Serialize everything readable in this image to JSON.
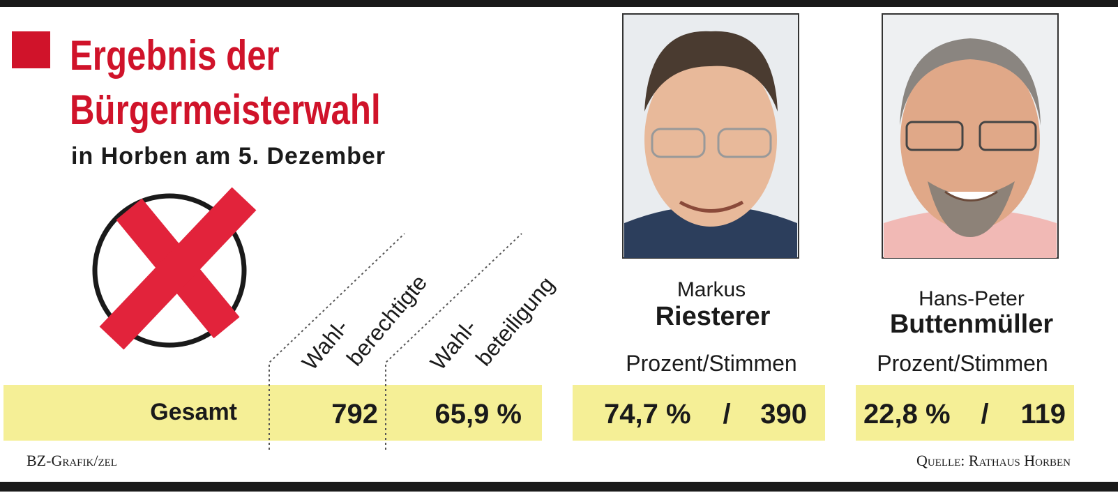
{
  "header": {
    "title_lines": [
      "Ergebnis der",
      "Bürgermeisterwahl"
    ],
    "subtitle": "in Horben am 5. Dezember"
  },
  "columns": [
    {
      "lines": [
        "Wahl-",
        "berechtigte"
      ]
    },
    {
      "lines": [
        "Wahl-",
        "beteiligung"
      ]
    }
  ],
  "candidates": [
    {
      "first_name": "Markus",
      "last_name": "Riesterer",
      "column_label": "Prozent/Stimmen"
    },
    {
      "first_name": "Hans-Peter",
      "last_name": "Buttenmüller",
      "column_label": "Prozent/Stimmen"
    }
  ],
  "table": {
    "separator": "/",
    "rows": [
      {
        "label": "Gesamt",
        "eligible": "792",
        "turnout": "65,9 %",
        "results": [
          {
            "percent": "74,7 %",
            "votes": "390"
          },
          {
            "percent": "22,8 %",
            "votes": "119"
          }
        ]
      }
    ]
  },
  "footer": {
    "credit": "BZ-Grafik/zel",
    "source": "Quelle: Rathaus Horben"
  }
}
